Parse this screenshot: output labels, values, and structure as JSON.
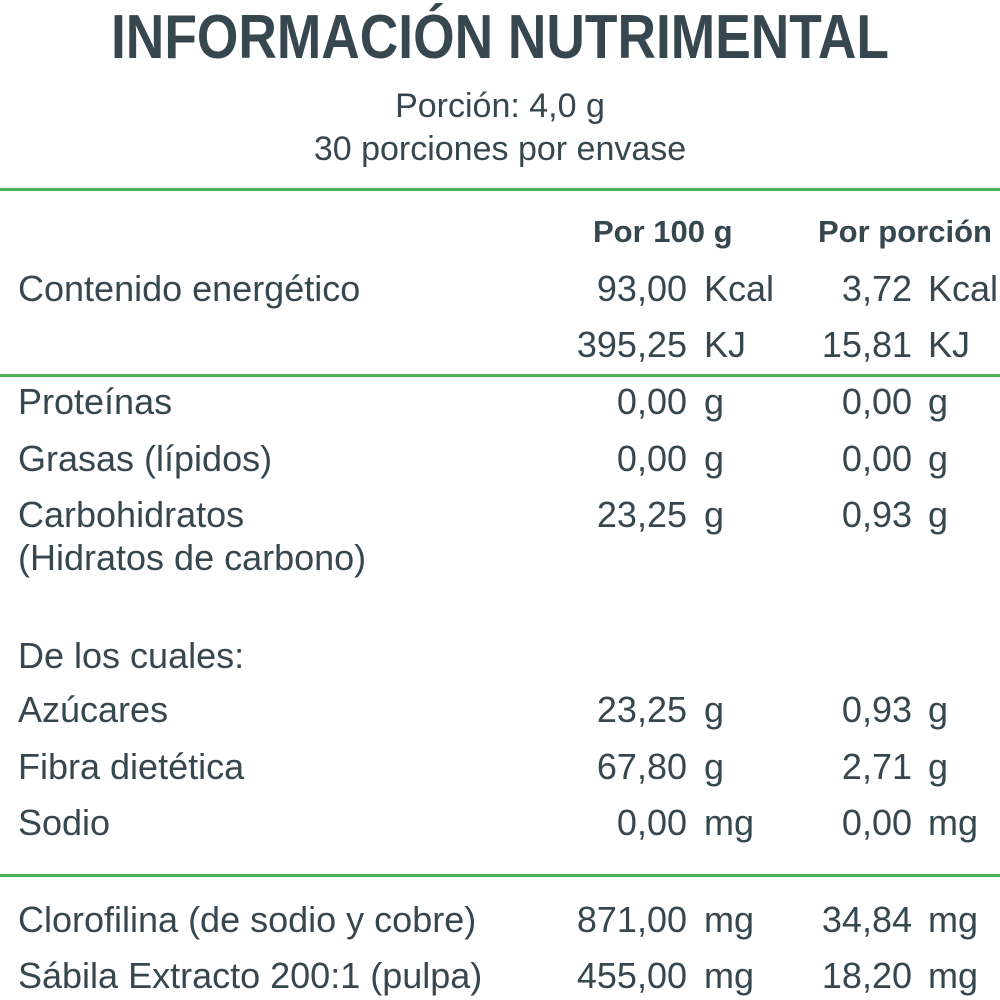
{
  "header": {
    "title": "INFORMACIÓN NUTRIMENTAL",
    "portion": "Porción: 4,0 g",
    "servings": "30 porciones por envase"
  },
  "columns": {
    "per100": "Por 100 g",
    "perPortion": "Por porción"
  },
  "rows": {
    "energia_kcal": {
      "label": "Contenido energético",
      "v1": "93,00",
      "u1": "Kcal",
      "v2": "3,72",
      "u2": "Kcal"
    },
    "energia_kj": {
      "label": "",
      "v1": "395,25",
      "u1": "KJ",
      "v2": "15,81",
      "u2": "KJ"
    },
    "proteinas": {
      "label": "Proteínas",
      "v1": "0,00",
      "u1": "g",
      "v2": "0,00",
      "u2": "g"
    },
    "grasas": {
      "label": "Grasas (lípidos)",
      "v1": "0,00",
      "u1": "g",
      "v2": "0,00",
      "u2": "g"
    },
    "carbohidratos": {
      "label": "Carbohidratos",
      "label2": "(Hidratos de carbono)",
      "v1": "23,25",
      "u1": "g",
      "v2": "0,93",
      "u2": "g"
    },
    "de_los_cuales": {
      "label": "De los cuales:"
    },
    "azucares": {
      "label": "Azúcares",
      "v1": "23,25",
      "u1": "g",
      "v2": "0,93",
      "u2": "g"
    },
    "fibra": {
      "label": "Fibra dietética",
      "v1": "67,80",
      "u1": "g",
      "v2": "2,71",
      "u2": "g"
    },
    "sodio": {
      "label": "Sodio",
      "v1": "0,00",
      "u1": "mg",
      "v2": "0,00",
      "u2": "mg"
    },
    "clorofilina": {
      "label": "Clorofilina (de sodio y cobre)",
      "v1": "871,00",
      "u1": "mg",
      "v2": "34,84",
      "u2": "mg"
    },
    "sabila": {
      "label": "Sábila Extracto 200:1 (pulpa)",
      "v1": "455,00",
      "u1": "mg",
      "v2": "18,20",
      "u2": "mg"
    }
  },
  "colors": {
    "text": "#37474f",
    "rule": "#4caf50"
  }
}
